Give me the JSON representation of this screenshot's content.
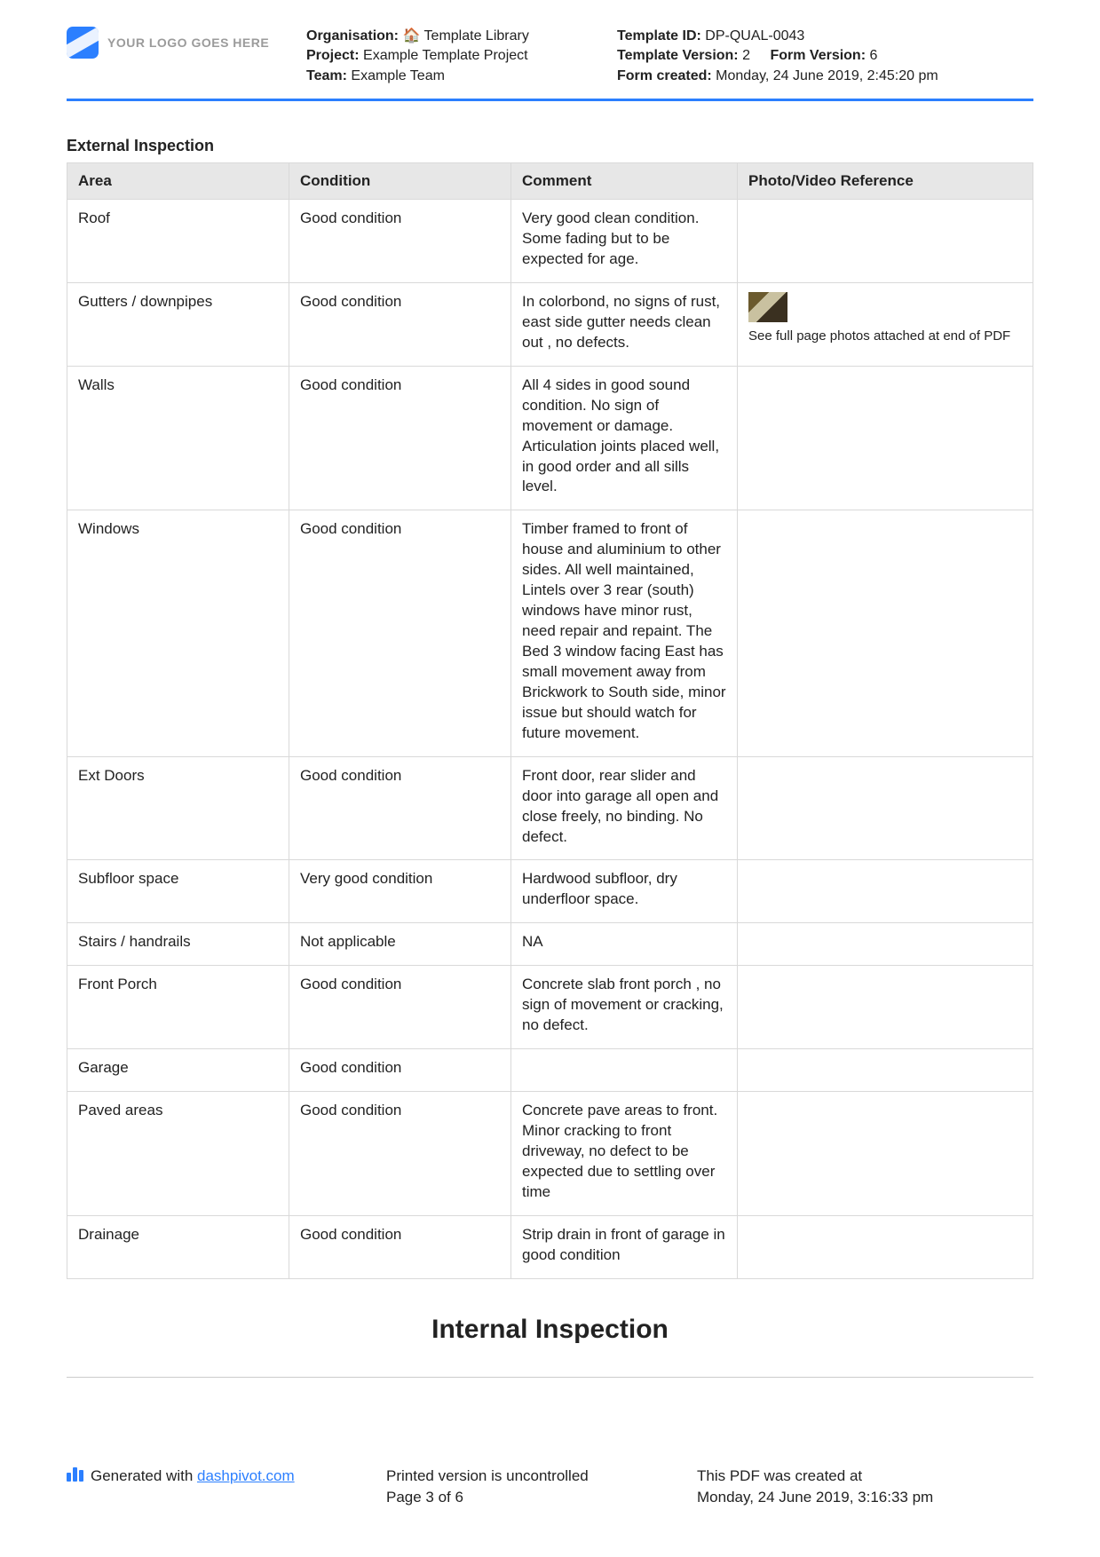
{
  "logo_placeholder": "YOUR LOGO GOES HERE",
  "header": {
    "left": {
      "org_label": "Organisation:",
      "org_value": "🏠 Template Library",
      "project_label": "Project:",
      "project_value": "Example Template Project",
      "team_label": "Team:",
      "team_value": "Example Team"
    },
    "right": {
      "template_id_label": "Template ID:",
      "template_id_value": "DP-QUAL-0043",
      "template_version_label": "Template Version:",
      "template_version_value": "2",
      "form_version_label": "Form Version:",
      "form_version_value": "6",
      "form_created_label": "Form created:",
      "form_created_value": "Monday, 24 June 2019, 2:45:20 pm"
    }
  },
  "section_title": "External Inspection",
  "table": {
    "headers": [
      "Area",
      "Condition",
      "Comment",
      "Photo/Video Reference"
    ],
    "photo_note": "See full page photos attached at end of PDF",
    "rows": [
      {
        "area": "Roof",
        "condition": "Good condition",
        "comment": "Very good clean condition. Some fading but to be expected for age.",
        "photo": ""
      },
      {
        "area": "Gutters / downpipes",
        "condition": "Good condition",
        "comment": "In colorbond, no signs of rust, east side gutter needs clean out , no defects.",
        "photo": "thumb"
      },
      {
        "area": "Walls",
        "condition": "Good condition",
        "comment": "All 4 sides in good sound condition. No sign of movement or damage. Articulation joints placed well, in good order and all sills level.",
        "photo": ""
      },
      {
        "area": "Windows",
        "condition": "Good condition",
        "comment": "Timber framed to front of house and aluminium to other sides. All well maintained, Lintels over 3 rear (south) windows have minor rust, need repair and repaint. The Bed 3 window facing East has small movement away from Brickwork to South side, minor issue but should watch for future movement.",
        "photo": ""
      },
      {
        "area": "Ext Doors",
        "condition": "Good condition",
        "comment": "Front door, rear slider and door into garage all open and close freely, no binding. No defect.",
        "photo": ""
      },
      {
        "area": "Subfloor space",
        "condition": "Very good condition",
        "comment": "Hardwood subfloor, dry underfloor space.",
        "photo": ""
      },
      {
        "area": "Stairs / handrails",
        "condition": "Not applicable",
        "comment": "NA",
        "photo": ""
      },
      {
        "area": "Front Porch",
        "condition": "Good condition",
        "comment": "Concrete slab front porch , no sign of movement or cracking, no defect.",
        "photo": ""
      },
      {
        "area": "Garage",
        "condition": "Good condition",
        "comment": "",
        "photo": ""
      },
      {
        "area": "Paved areas",
        "condition": "Good condition",
        "comment": "Concrete pave areas to front. Minor cracking to front driveway, no defect to be expected due to settling over time",
        "photo": ""
      },
      {
        "area": "Drainage",
        "condition": "Good condition",
        "comment": "Strip drain in front of garage in good condition",
        "photo": ""
      }
    ]
  },
  "big_heading": "Internal Inspection",
  "footer": {
    "generated_prefix": "Generated with ",
    "generated_link": "dashpivot.com",
    "uncontrolled": "Printed version is uncontrolled",
    "page_info": "Page 3 of 6",
    "created_label": "This PDF was created at",
    "created_value": "Monday, 24 June 2019, 3:16:33 pm"
  }
}
